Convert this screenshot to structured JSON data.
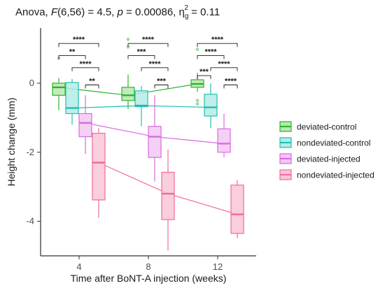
{
  "chart_data": {
    "type": "box",
    "title": {
      "prefix": "Anova, ",
      "f_symbol": "F",
      "f_args": "(6,56) = 4.5, ",
      "p_symbol": "p",
      "p_value": " = 0.00086, ",
      "eta": "η",
      "eta_sub": "g",
      "eta_sup": "2",
      "eta_value": " = 0.11"
    },
    "xlabel": "Time after BoNT-A injection (weeks)",
    "ylabel": "Height change (mm)",
    "categories": [
      "4",
      "8",
      "12"
    ],
    "ylim": [
      -5.0,
      1.6
    ],
    "yticks": [
      0,
      -2,
      -4
    ],
    "ytick_labels": [
      "0",
      "-2",
      "-4"
    ],
    "legend_position": "right",
    "series": [
      {
        "name": "deviated-control",
        "color": "#2db32d",
        "fill": "#b8e6b0",
        "boxes": [
          {
            "min": -0.78,
            "q1": -0.35,
            "median": -0.12,
            "q3": 0.0,
            "max": 0.15,
            "outliers": [
              0.72
            ]
          },
          {
            "min": -0.75,
            "q1": -0.5,
            "median": -0.35,
            "q3": -0.12,
            "max": 0.25,
            "outliers": [
              1.27,
              1.05
            ]
          },
          {
            "min": -0.25,
            "q1": -0.12,
            "median": -0.02,
            "q3": 0.1,
            "max": 0.3,
            "outliers": [
              0.98,
              -0.5,
              -0.6
            ]
          }
        ]
      },
      {
        "name": "nondeviated-control",
        "color": "#1fbfb0",
        "fill": "#b5ebe6",
        "boxes": [
          {
            "min": -1.2,
            "q1": -0.88,
            "median": -0.72,
            "q3": 0.02,
            "max": 0.12,
            "outliers": []
          },
          {
            "min": -1.25,
            "q1": -0.68,
            "median": -0.65,
            "q3": -0.22,
            "max": -0.08,
            "outliers": []
          },
          {
            "min": -1.3,
            "q1": -0.95,
            "median": -0.7,
            "q3": -0.32,
            "max": 0.0,
            "outliers": []
          }
        ]
      },
      {
        "name": "deviated-injected",
        "color": "#d76be0",
        "fill": "#f3c8f3",
        "boxes": [
          {
            "min": -2.05,
            "q1": -1.55,
            "median": -1.15,
            "q3": -0.88,
            "max": -0.35,
            "outliers": []
          },
          {
            "min": -2.85,
            "q1": -2.15,
            "median": -1.55,
            "q3": -1.25,
            "max": -0.35,
            "outliers": []
          },
          {
            "min": -2.15,
            "q1": -2.0,
            "median": -1.75,
            "q3": -1.32,
            "max": -0.88,
            "outliers": []
          }
        ]
      },
      {
        "name": "nondeviated-injected",
        "color": "#f06a9c",
        "fill": "#fac6d8",
        "boxes": [
          {
            "min": -3.9,
            "q1": -3.38,
            "median": -2.3,
            "q3": -1.45,
            "max": -1.3,
            "outliers": []
          },
          {
            "min": -4.85,
            "q1": -3.95,
            "median": -3.2,
            "q3": -2.58,
            "max": -1.92,
            "outliers": []
          },
          {
            "min": -4.5,
            "q1": -4.35,
            "median": -3.8,
            "q3": -2.95,
            "max": -2.8,
            "outliers": []
          }
        ]
      }
    ],
    "significance": [
      {
        "category": 0,
        "from": 0,
        "to": 3,
        "y": 1.15,
        "label": "****"
      },
      {
        "category": 0,
        "from": 0,
        "to": 2,
        "y": 0.8,
        "label": "**"
      },
      {
        "category": 0,
        "from": 1,
        "to": 3,
        "y": 0.45,
        "label": "****"
      },
      {
        "category": 0,
        "from": 2,
        "to": 3,
        "y": -0.05,
        "label": "**"
      },
      {
        "category": 1,
        "from": 0,
        "to": 3,
        "y": 1.15,
        "label": "****"
      },
      {
        "category": 1,
        "from": 0,
        "to": 2,
        "y": 0.8,
        "label": "***"
      },
      {
        "category": 1,
        "from": 1,
        "to": 3,
        "y": 0.45,
        "label": "****"
      },
      {
        "category": 1,
        "from": 2,
        "to": 3,
        "y": -0.05,
        "label": "***"
      },
      {
        "category": 2,
        "from": 0,
        "to": 3,
        "y": 1.15,
        "label": "****"
      },
      {
        "category": 2,
        "from": 0,
        "to": 2,
        "y": 0.8,
        "label": "****"
      },
      {
        "category": 2,
        "from": 1,
        "to": 3,
        "y": 0.45,
        "label": "****"
      },
      {
        "category": 2,
        "from": 0,
        "to": 1,
        "y": 0.22,
        "label": "***"
      },
      {
        "category": 2,
        "from": 2,
        "to": 3,
        "y": -0.05,
        "label": "****"
      }
    ]
  }
}
